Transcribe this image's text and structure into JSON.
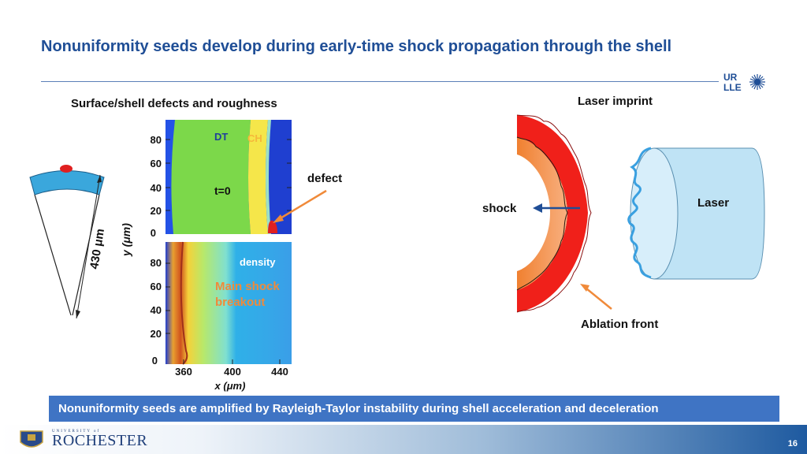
{
  "title": "Nonuniformity seeds develop during early-time shock propagation through the shell",
  "left_panel": {
    "heading": "Surface/shell defects and roughness",
    "size_label": "430 μm",
    "y_axis_label": "y (μm)",
    "x_axis_label": "x (μm)",
    "top_plot": {
      "region_labels": [
        "DT",
        "CH"
      ],
      "time_label": "t=0",
      "y_ticks": [
        "80",
        "60",
        "40",
        "20",
        "0"
      ]
    },
    "bottom_plot": {
      "quantity_label": "density",
      "annotation": [
        "Main shock",
        "breakout"
      ],
      "y_ticks": [
        "80",
        "60",
        "40",
        "20",
        "0"
      ],
      "x_ticks": [
        "360",
        "400",
        "440"
      ]
    },
    "defect_label": "defect"
  },
  "right_panel": {
    "laser_imprint_label": "Laser imprint",
    "shock_label": "shock",
    "laser_label": "Laser",
    "ablation_front_label": "Ablation front"
  },
  "banner_text": "Nonuniformity seeds are amplified by Rayleigh-Taylor instability during shell acceleration and deceleration",
  "logo": {
    "line1": "UR",
    "line2": "LLE"
  },
  "footer": {
    "university_small": "UNIVERSITY of",
    "university_name": "ROCHESTER",
    "page_number": "16"
  },
  "colors": {
    "title": "#1f4e96",
    "banner": "#3f74c4",
    "arrow_orange": "#f08a3a",
    "arrow_blue": "#1f4e96",
    "shell_red": "#f0201a",
    "laser_cyl": "#bfe3f5"
  }
}
